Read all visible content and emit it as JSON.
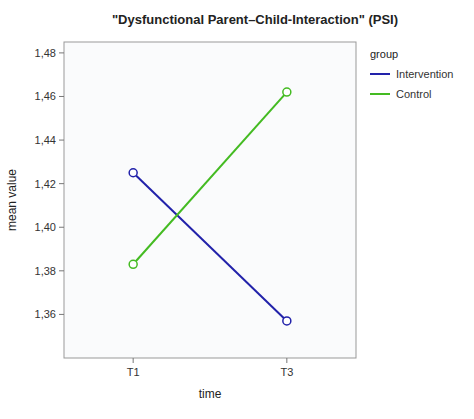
{
  "chart_data": {
    "type": "line",
    "title": "\"Dysfunctional Parent–Child-Interaction\" (PSI)",
    "x_label": "time",
    "y_label": "mean value",
    "categories": [
      "T1",
      "T3"
    ],
    "series": [
      {
        "name": "Intervention",
        "color": "#2222aa",
        "values": [
          1.425,
          1.357
        ]
      },
      {
        "name": "Control",
        "color": "#44bb22",
        "values": [
          1.383,
          1.462
        ]
      }
    ],
    "ylim": [
      1.34,
      1.485
    ],
    "yticks": [
      {
        "value": 1.36,
        "label": "1,36"
      },
      {
        "value": 1.38,
        "label": "1,38"
      },
      {
        "value": 1.4,
        "label": "1,40"
      },
      {
        "value": 1.42,
        "label": "1,42"
      },
      {
        "value": 1.44,
        "label": "1,44"
      },
      {
        "value": 1.46,
        "label": "1,46"
      },
      {
        "value": 1.48,
        "label": "1,48"
      }
    ],
    "legend_title": "group",
    "legend": "right",
    "marker": "circle",
    "grid": false
  }
}
